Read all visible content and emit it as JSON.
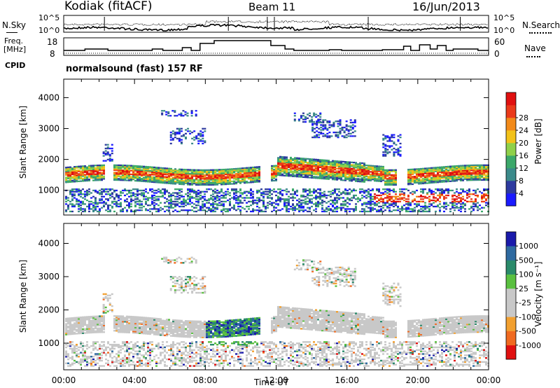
{
  "header": {
    "station": "Kodiak (fitACF)",
    "beam": "Beam 11",
    "date": "16/Jun/2013",
    "cpid_label": "CPID",
    "cpid_text": "normalsound (fast) 157 RF"
  },
  "noise_panel": {
    "left_label": "N.Sky",
    "right_label": "N.Search",
    "ticks": [
      "10^5",
      "10^0"
    ]
  },
  "freq_panel": {
    "left_label_1": "Freq.",
    "left_label_2": "[MHz]",
    "left_ticks": [
      "18",
      "8"
    ],
    "right_label": "Nave",
    "right_ticks": [
      "60",
      "0"
    ]
  },
  "colors": {
    "power": [
      "#1a1aff",
      "#2d3a9f",
      "#3b8a8a",
      "#3ca86a",
      "#8fd04a",
      "#f2c21a",
      "#f28a1a",
      "#ea3a1a",
      "#e01010"
    ],
    "velocity": [
      "#1a1aaa",
      "#2e6aa0",
      "#2a8a6a",
      "#5ac040",
      "#c8c8c8",
      "#c8c8c8",
      "#f2a030",
      "#f06a20",
      "#e01010"
    ]
  },
  "chart_data": [
    {
      "type": "heatmap",
      "panel": "power",
      "ylabel": "Slant Range [km]",
      "y_ticks": [
        1000,
        2000,
        3000,
        4000
      ],
      "ylim": [
        200,
        4600
      ],
      "xlim": [
        0,
        24
      ],
      "colorbar_label": "Power [dB]",
      "colorbar_ticks": [
        4,
        8,
        12,
        16,
        20,
        24,
        28
      ]
    },
    {
      "type": "heatmap",
      "panel": "velocity",
      "ylabel": "Slant Range [km]",
      "y_ticks": [
        1000,
        2000,
        3000,
        4000
      ],
      "ylim": [
        200,
        4600
      ],
      "xlim": [
        0,
        24
      ],
      "xlabel": "Time UT",
      "x_ticks": [
        "00:00",
        "04:00",
        "08:00",
        "12:00",
        "16:00",
        "20:00",
        "00:00"
      ],
      "colorbar_label": "Velocity [m s⁻¹]",
      "colorbar_ticks": [
        1000,
        500,
        100,
        25,
        -25,
        -100,
        -500,
        -1000
      ]
    }
  ]
}
